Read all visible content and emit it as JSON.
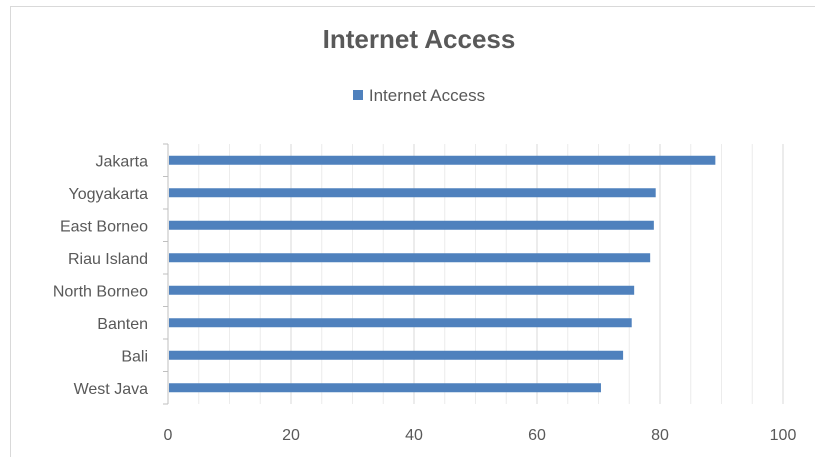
{
  "chart_data": {
    "type": "bar",
    "orientation": "horizontal",
    "title": "Internet Access",
    "categories": [
      "Jakarta",
      "Yogyakarta",
      "East Borneo",
      "Riau Island",
      "North Borneo",
      "Banten",
      "Bali",
      "West Java"
    ],
    "series": [
      {
        "name": "Internet Access",
        "color": "#4f81bd",
        "values": [
          89,
          79.3,
          79,
          78.4,
          75.8,
          75.4,
          74,
          70.4
        ]
      }
    ],
    "xlim": [
      0,
      100
    ],
    "xticks": [
      0,
      20,
      40,
      60,
      80,
      100
    ],
    "grid": true,
    "legend": "top"
  }
}
